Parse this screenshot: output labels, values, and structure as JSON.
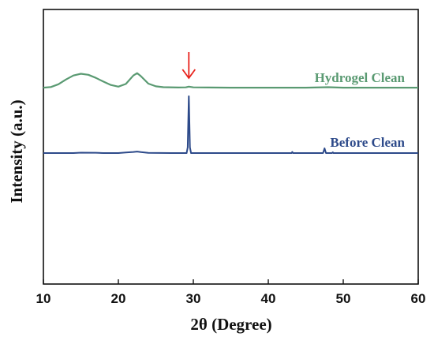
{
  "chart_data": {
    "type": "line",
    "xlabel": "2θ (Degree)",
    "ylabel": "Intensity (a.u.)",
    "xlim": [
      10,
      60
    ],
    "xticks": [
      "10",
      "20",
      "30",
      "40",
      "50",
      "60"
    ],
    "y_tick_labels_shown": false,
    "grid": false,
    "annotation": {
      "type": "arrow",
      "x": 29.4,
      "color": "#e8221c"
    },
    "series": [
      {
        "name": "Hydrogel Clean",
        "color": "#5a9a72",
        "x": [
          10,
          11,
          12,
          13,
          14,
          15,
          16,
          17,
          18,
          19,
          20,
          21,
          22,
          22.5,
          23,
          24,
          25,
          26,
          28,
          29,
          29.4,
          30,
          32,
          35,
          40,
          45,
          48,
          50,
          55,
          60
        ],
        "y": [
          0.2,
          0.4,
          1.2,
          2.6,
          3.8,
          4.3,
          4.0,
          3.1,
          2.0,
          1.0,
          0.5,
          1.3,
          3.8,
          4.5,
          3.6,
          1.4,
          0.6,
          0.35,
          0.25,
          0.3,
          0.5,
          0.3,
          0.25,
          0.2,
          0.2,
          0.2,
          0.35,
          0.2,
          0.2,
          0.2
        ]
      },
      {
        "name": "Before Clean",
        "color": "#2d4a8a",
        "x": [
          10,
          14,
          15,
          17,
          18,
          20,
          21,
          22,
          22.5,
          23,
          24,
          27,
          29.1,
          29.25,
          29.4,
          29.55,
          29.7,
          30,
          35,
          40,
          43.1,
          43.2,
          43.3,
          47.3,
          47.5,
          47.7,
          48.5,
          48.6,
          48.7,
          55,
          60
        ],
        "y": [
          0,
          0,
          0.2,
          0.15,
          0,
          0,
          0.3,
          0.6,
          0.8,
          0.5,
          0.1,
          0,
          0,
          3,
          30,
          3,
          0,
          0,
          0,
          0,
          0,
          0.6,
          0,
          0,
          2.5,
          0,
          0,
          0.4,
          0,
          0,
          0
        ]
      }
    ]
  }
}
